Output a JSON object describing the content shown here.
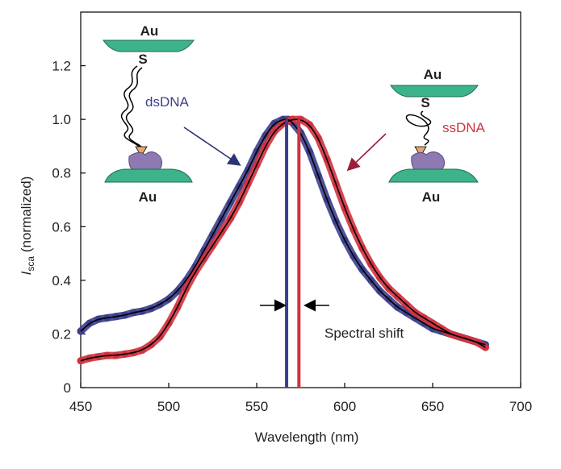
{
  "chart_data": {
    "type": "line",
    "xlabel": "Wavelength (nm)",
    "ylabel_main": "I",
    "ylabel_sub": "sca",
    "ylabel_rest": " (normalized)",
    "xlim": [
      450,
      700
    ],
    "ylim": [
      0,
      1.4
    ],
    "xticks": [
      450,
      500,
      550,
      600,
      650,
      700
    ],
    "yticks": [
      0,
      0.2,
      0.4,
      0.6,
      0.8,
      1.0,
      1.2
    ],
    "ytick_labels": [
      "0",
      "0.2",
      "0.4",
      "0.6",
      "0.8",
      "1.0",
      "1.2"
    ],
    "grid": false,
    "series": [
      {
        "name": "dsDNA",
        "color": "#3c3f8c",
        "fit_color": "#000000",
        "x": [
          450,
          455,
          460,
          465,
          470,
          475,
          480,
          485,
          490,
          495,
          500,
          505,
          510,
          515,
          520,
          525,
          530,
          535,
          540,
          545,
          550,
          555,
          560,
          565,
          568,
          570,
          575,
          580,
          585,
          590,
          595,
          600,
          605,
          610,
          615,
          620,
          625,
          630,
          635,
          640,
          645,
          650,
          655,
          660,
          665,
          670,
          675,
          680
        ],
        "y": [
          0.21,
          0.24,
          0.255,
          0.26,
          0.265,
          0.27,
          0.28,
          0.285,
          0.295,
          0.31,
          0.33,
          0.36,
          0.4,
          0.45,
          0.51,
          0.57,
          0.63,
          0.69,
          0.75,
          0.81,
          0.88,
          0.94,
          0.985,
          1.0,
          1.0,
          0.99,
          0.95,
          0.88,
          0.79,
          0.7,
          0.62,
          0.55,
          0.49,
          0.44,
          0.4,
          0.36,
          0.33,
          0.3,
          0.28,
          0.26,
          0.24,
          0.22,
          0.21,
          0.2,
          0.19,
          0.18,
          0.17,
          0.16
        ],
        "peak": 567
      },
      {
        "name": "ssDNA",
        "color": "#d1323f",
        "fit_color": "#000000",
        "x": [
          450,
          455,
          460,
          465,
          470,
          475,
          480,
          485,
          490,
          495,
          500,
          505,
          510,
          515,
          520,
          525,
          530,
          535,
          540,
          545,
          550,
          555,
          560,
          565,
          570,
          575,
          580,
          585,
          590,
          595,
          600,
          605,
          610,
          615,
          620,
          625,
          630,
          635,
          640,
          645,
          650,
          655,
          660,
          665,
          670,
          675,
          680
        ],
        "y": [
          0.1,
          0.11,
          0.115,
          0.12,
          0.12,
          0.125,
          0.13,
          0.14,
          0.16,
          0.19,
          0.24,
          0.3,
          0.37,
          0.43,
          0.48,
          0.53,
          0.58,
          0.63,
          0.69,
          0.76,
          0.83,
          0.9,
          0.955,
          0.985,
          1.0,
          1.0,
          0.98,
          0.93,
          0.85,
          0.76,
          0.67,
          0.59,
          0.52,
          0.46,
          0.41,
          0.37,
          0.34,
          0.31,
          0.28,
          0.26,
          0.24,
          0.22,
          0.2,
          0.19,
          0.18,
          0.17,
          0.15
        ],
        "peak": 574
      }
    ],
    "annotations": {
      "spectral_shift": "Spectral shift",
      "au_label": "Au",
      "s_label": "S",
      "dsDNA_label": "dsDNA",
      "ssDNA_label": "ssDNA"
    },
    "colors": {
      "ds": "#3c3f8c",
      "ss": "#d1323f",
      "gold_disc": "#3db38a",
      "protein": "#8f79b3",
      "tip": "#e6a66b",
      "arrow_ds": "#2b3475",
      "arrow_ss": "#9b1f3a"
    }
  }
}
